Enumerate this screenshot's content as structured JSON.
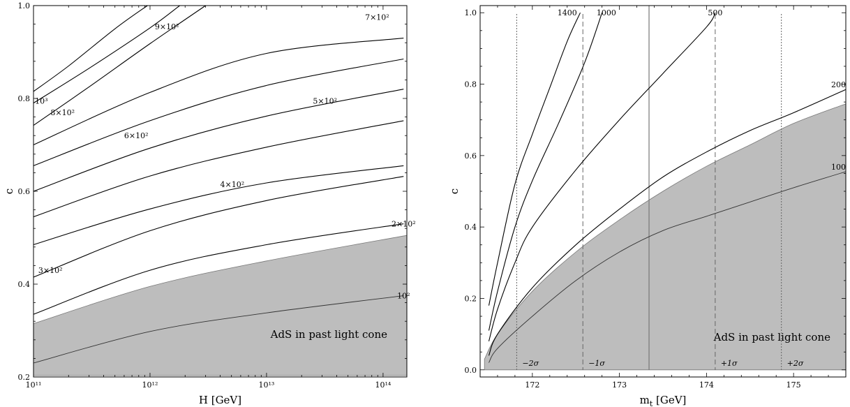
{
  "chart_data": [
    {
      "type": "contour",
      "xlabel": "H [GeV]",
      "ylabel": "c",
      "xscale": "log",
      "xlim": [
        100000000000.0,
        160000000000000.0
      ],
      "ylim": [
        0.2,
        1.0
      ],
      "xticks": [
        {
          "value": 100000000000.0,
          "label": "10¹¹"
        },
        {
          "value": 1000000000000.0,
          "label": "10¹²"
        },
        {
          "value": 10000000000000.0,
          "label": "10¹³"
        },
        {
          "value": 100000000000000.0,
          "label": "10¹⁴"
        }
      ],
      "yticks": [
        0.2,
        0.4,
        0.6,
        0.8,
        1.0
      ],
      "shaded_region": {
        "label": "AdS in past light cone",
        "color": "#bdbdbd",
        "upper": {
          "x": [
            100000000000.0,
            1000000000000.0,
            10000000000000.0,
            160000000000000.0
          ],
          "y": [
            0.315,
            0.395,
            0.45,
            0.505
          ]
        }
      },
      "contours": [
        {
          "label": "10²",
          "x": [
            100000000000.0,
            1000000000000.0,
            10000000000000.0,
            150000000000000.0
          ],
          "y": [
            0.23,
            0.298,
            0.338,
            0.375
          ],
          "label_at": [
            150000000000000.0,
            0.375
          ],
          "inside_region": true
        },
        {
          "label": "2×10²",
          "x": [
            100000000000.0,
            1000000000000.0,
            10000000000000.0,
            150000000000000.0
          ],
          "y": [
            0.335,
            0.43,
            0.485,
            0.53
          ],
          "label_at": [
            150000000000000.0,
            0.53
          ]
        },
        {
          "label": "3×10²",
          "x": [
            100000000000.0,
            1000000000000.0,
            10000000000000.0,
            150000000000000.0
          ],
          "y": [
            0.415,
            0.515,
            0.58,
            0.632
          ],
          "label_at": [
            110000000000.0,
            0.43
          ]
        },
        {
          "label": "",
          "x": [
            100000000000.0,
            1000000000000.0,
            10000000000000.0,
            150000000000000.0
          ],
          "y": [
            0.485,
            0.562,
            0.618,
            0.655
          ]
        },
        {
          "label": "4×10²",
          "x": [
            100000000000.0,
            1000000000000.0,
            10000000000000.0,
            150000000000000.0
          ],
          "y": [
            0.545,
            0.633,
            0.695,
            0.752
          ],
          "label_at": [
            4000000000000.0,
            0.615
          ]
        },
        {
          "label": "5×10²",
          "x": [
            100000000000.0,
            1000000000000.0,
            10000000000000.0,
            150000000000000.0
          ],
          "y": [
            0.6,
            0.693,
            0.762,
            0.82
          ],
          "label_at": [
            25000000000000.0,
            0.795
          ]
        },
        {
          "label": "6×10²",
          "x": [
            100000000000.0,
            1000000000000.0,
            10000000000000.0,
            150000000000000.0
          ],
          "y": [
            0.655,
            0.752,
            0.828,
            0.885
          ],
          "label_at": [
            600000000000.0,
            0.72
          ]
        },
        {
          "label": "7×10²",
          "x": [
            100000000000.0,
            1000000000000.0,
            10000000000000.0,
            150000000000000.0
          ],
          "y": [
            0.7,
            0.813,
            0.897,
            0.93
          ],
          "label_at": [
            70000000000000.0,
            0.975
          ]
        },
        {
          "label": "8×10²",
          "x": [
            100000000000.0,
            300000000000.0,
            1000000000000.0,
            3000000000000.0
          ],
          "y": [
            0.742,
            0.825,
            0.918,
            1.0
          ],
          "label_at": [
            140000000000.0,
            0.77
          ]
        },
        {
          "label": "9×10²",
          "x": [
            100000000000.0,
            300000000000.0,
            1000000000000.0,
            1800000000000.0
          ],
          "y": [
            0.79,
            0.865,
            0.952,
            1.0
          ],
          "label_at": [
            1100000000000.0,
            0.955
          ]
        },
        {
          "label": "10³",
          "x": [
            100000000000.0,
            200000000000.0,
            500000000000.0,
            950000000000.0
          ],
          "y": [
            0.815,
            0.87,
            0.95,
            1.0
          ],
          "label_at": [
            103000000000.0,
            0.795
          ]
        }
      ]
    },
    {
      "type": "contour",
      "xlabel": "m_t [GeV]",
      "xlabel_main": "m",
      "xlabel_sub": "t",
      "xlabel_unit": " [GeV]",
      "ylabel": "c",
      "xlim": [
        171.4,
        175.6
      ],
      "ylim": [
        -0.02,
        1.02
      ],
      "xticks": [
        172,
        173,
        174,
        175
      ],
      "yticks": [
        0.0,
        0.2,
        0.4,
        0.6,
        0.8,
        1.0
      ],
      "central_value": 173.34,
      "sigma_lines": [
        {
          "x": 171.82,
          "label": "−2σ",
          "style": "dotted"
        },
        {
          "x": 172.58,
          "label": "−1σ",
          "style": "dashed"
        },
        {
          "x": 174.1,
          "label": "+1σ",
          "style": "dashed"
        },
        {
          "x": 174.86,
          "label": "+2σ",
          "style": "dotted"
        }
      ],
      "shaded_region": {
        "label": "AdS in past light cone",
        "color": "#bdbdbd",
        "upper": {
          "x": [
            171.45,
            171.6,
            172.0,
            172.5,
            173.0,
            173.5,
            174.0,
            174.5,
            175.0,
            175.6
          ],
          "y": [
            0.03,
            0.1,
            0.22,
            0.33,
            0.42,
            0.5,
            0.57,
            0.63,
            0.69,
            0.745
          ]
        }
      },
      "contours": [
        {
          "label": "100",
          "x": [
            171.5,
            171.6,
            172.0,
            172.5,
            173.0,
            173.5,
            174.0,
            174.5,
            175.0,
            175.6
          ],
          "y": [
            0.02,
            0.06,
            0.15,
            0.25,
            0.33,
            0.39,
            0.43,
            0.47,
            0.51,
            0.555
          ],
          "label_at": [
            175.6,
            0.555
          ],
          "inside_region": true
        },
        {
          "label": "200",
          "x": [
            171.5,
            171.6,
            172.0,
            172.5,
            173.0,
            173.5,
            174.0,
            174.5,
            175.0,
            175.6
          ],
          "y": [
            0.04,
            0.1,
            0.23,
            0.35,
            0.45,
            0.54,
            0.61,
            0.67,
            0.72,
            0.785
          ],
          "label_at": [
            175.6,
            0.785
          ]
        },
        {
          "label": "500",
          "x": [
            171.5,
            171.6,
            171.8,
            172.0,
            172.5,
            173.0,
            173.5,
            174.0,
            174.1
          ],
          "y": [
            0.08,
            0.17,
            0.3,
            0.4,
            0.56,
            0.7,
            0.83,
            0.96,
            1.0
          ],
          "label_at": [
            174.1,
            1.0
          ]
        },
        {
          "label": "1000",
          "x": [
            171.5,
            171.6,
            171.8,
            172.0,
            172.3,
            172.6,
            172.8
          ],
          "y": [
            0.11,
            0.22,
            0.4,
            0.53,
            0.69,
            0.86,
            1.0
          ],
          "label_at": [
            172.85,
            1.0
          ]
        },
        {
          "label": "1400",
          "x": [
            171.5,
            171.6,
            171.8,
            172.0,
            172.2,
            172.4,
            172.55
          ],
          "y": [
            0.18,
            0.3,
            0.52,
            0.66,
            0.79,
            0.92,
            1.0
          ],
          "label_at": [
            172.4,
            1.0
          ]
        }
      ]
    }
  ]
}
